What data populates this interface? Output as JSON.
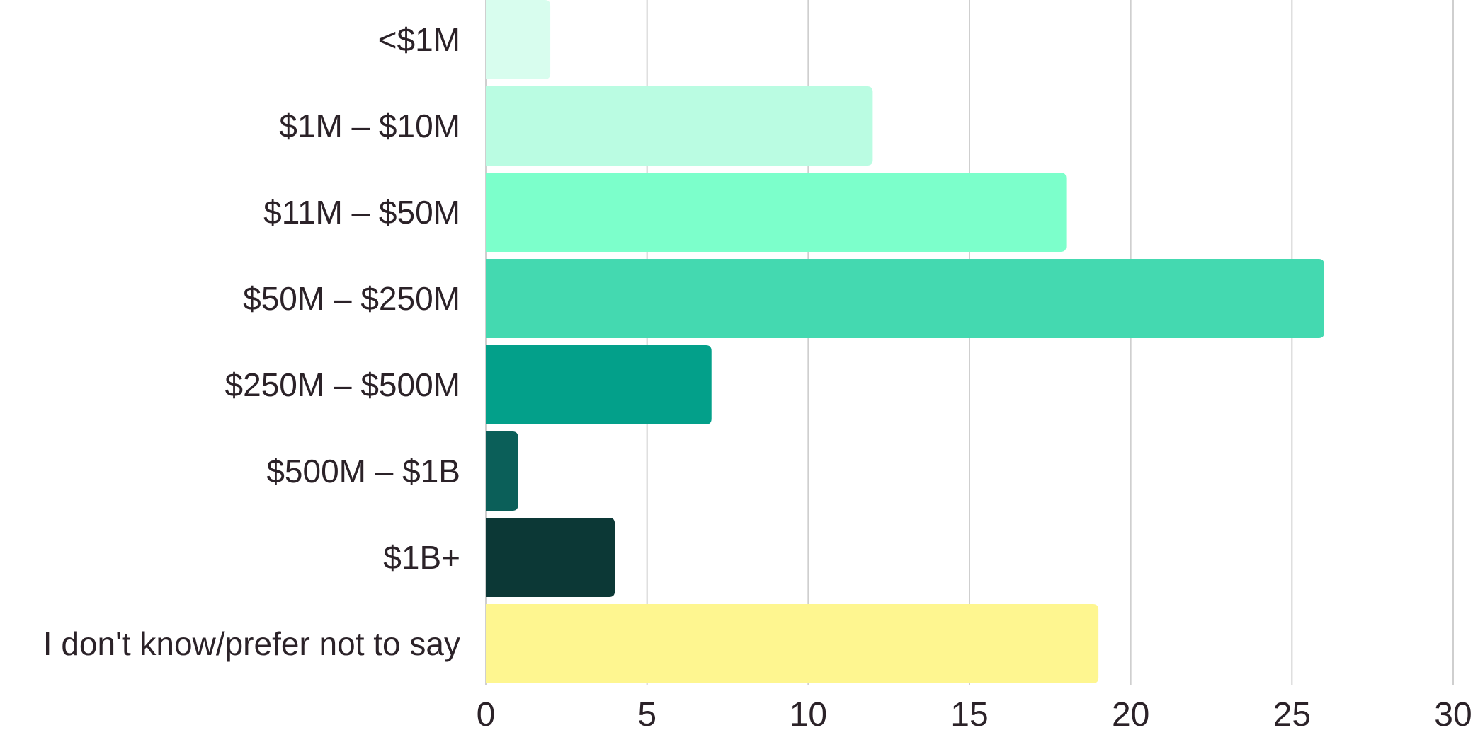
{
  "chart_data": {
    "type": "bar",
    "orientation": "horizontal",
    "title": "",
    "xlabel": "",
    "ylabel": "",
    "categories": [
      "<$1M",
      "$1M – $10M",
      "$11M – $50M",
      "$50M – $250M",
      "$250M – $500M",
      "$500M – $1B",
      "$1B+",
      "I don't know/prefer not to say"
    ],
    "values": [
      2,
      12,
      18,
      26,
      7,
      1,
      4,
      19
    ],
    "colors": [
      "#d8fdee",
      "#bafce2",
      "#7cffcb",
      "#44d9b0",
      "#03a08a",
      "#0b5f59",
      "#0c3836",
      "#fef690"
    ],
    "xlim": [
      0,
      30
    ],
    "xticks": [
      "0",
      "5",
      "10",
      "15",
      "20",
      "25",
      "30"
    ],
    "grid": true,
    "legend": "none"
  }
}
